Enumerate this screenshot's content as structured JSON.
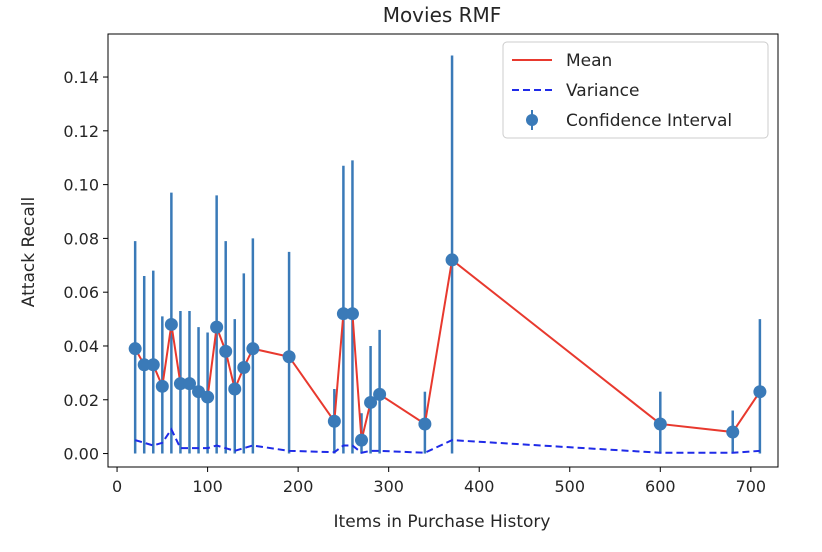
{
  "chart_data": {
    "type": "line",
    "title": "Movies RMF",
    "xlabel": "Items in Purchase History",
    "ylabel": "Attack Recall",
    "xlim": [
      -10,
      730
    ],
    "ylim": [
      -0.005,
      0.156
    ],
    "xticks": [
      0,
      100,
      200,
      300,
      400,
      500,
      600,
      700
    ],
    "yticks": [
      0.0,
      0.02,
      0.04,
      0.06,
      0.08,
      0.1,
      0.12,
      0.14
    ],
    "ytick_labels": [
      "0.00",
      "0.02",
      "0.04",
      "0.06",
      "0.08",
      "0.10",
      "0.12",
      "0.14"
    ],
    "grid": false,
    "legend_position": "top-right",
    "colors": {
      "mean": "#e8392e",
      "variance": "#1f2be8",
      "ci": "#3a7ab8"
    },
    "x": [
      20,
      30,
      40,
      50,
      60,
      70,
      80,
      90,
      100,
      110,
      120,
      130,
      140,
      150,
      190,
      240,
      250,
      260,
      270,
      280,
      290,
      340,
      370,
      600,
      680,
      710
    ],
    "series": [
      {
        "name": "Mean",
        "style": "solid",
        "values": [
          0.039,
          0.033,
          0.033,
          0.025,
          0.048,
          0.026,
          0.026,
          0.023,
          0.021,
          0.047,
          0.038,
          0.024,
          0.032,
          0.039,
          0.036,
          0.012,
          0.052,
          0.052,
          0.005,
          0.019,
          0.022,
          0.011,
          0.072,
          0.011,
          0.008,
          0.023
        ]
      },
      {
        "name": "Variance",
        "style": "dashed",
        "values": [
          0.005,
          0.004,
          0.003,
          0.004,
          0.009,
          0.002,
          0.002,
          0.002,
          0.002,
          0.003,
          0.002,
          0.001,
          0.002,
          0.003,
          0.001,
          0.0005,
          0.003,
          0.003,
          0.0003,
          0.001,
          0.001,
          0.0003,
          0.005,
          0.0003,
          0.0003,
          0.001
        ]
      },
      {
        "name": "Confidence Interval",
        "style": "errorbar",
        "lower": [
          0.0,
          0.0,
          0.0,
          0.0,
          0.0,
          0.0,
          0.0,
          0.0,
          0.0,
          0.0,
          0.0,
          0.0,
          0.0,
          0.0,
          0.0,
          0.0,
          0.0,
          0.0,
          0.0,
          0.0,
          0.0,
          0.0,
          0.0,
          0.0,
          0.0,
          0.0
        ],
        "upper": [
          0.079,
          0.066,
          0.068,
          0.051,
          0.097,
          0.053,
          0.053,
          0.047,
          0.045,
          0.096,
          0.079,
          0.05,
          0.067,
          0.08,
          0.075,
          0.024,
          0.107,
          0.109,
          0.015,
          0.04,
          0.046,
          0.023,
          0.148,
          0.023,
          0.016,
          0.05
        ]
      }
    ]
  }
}
